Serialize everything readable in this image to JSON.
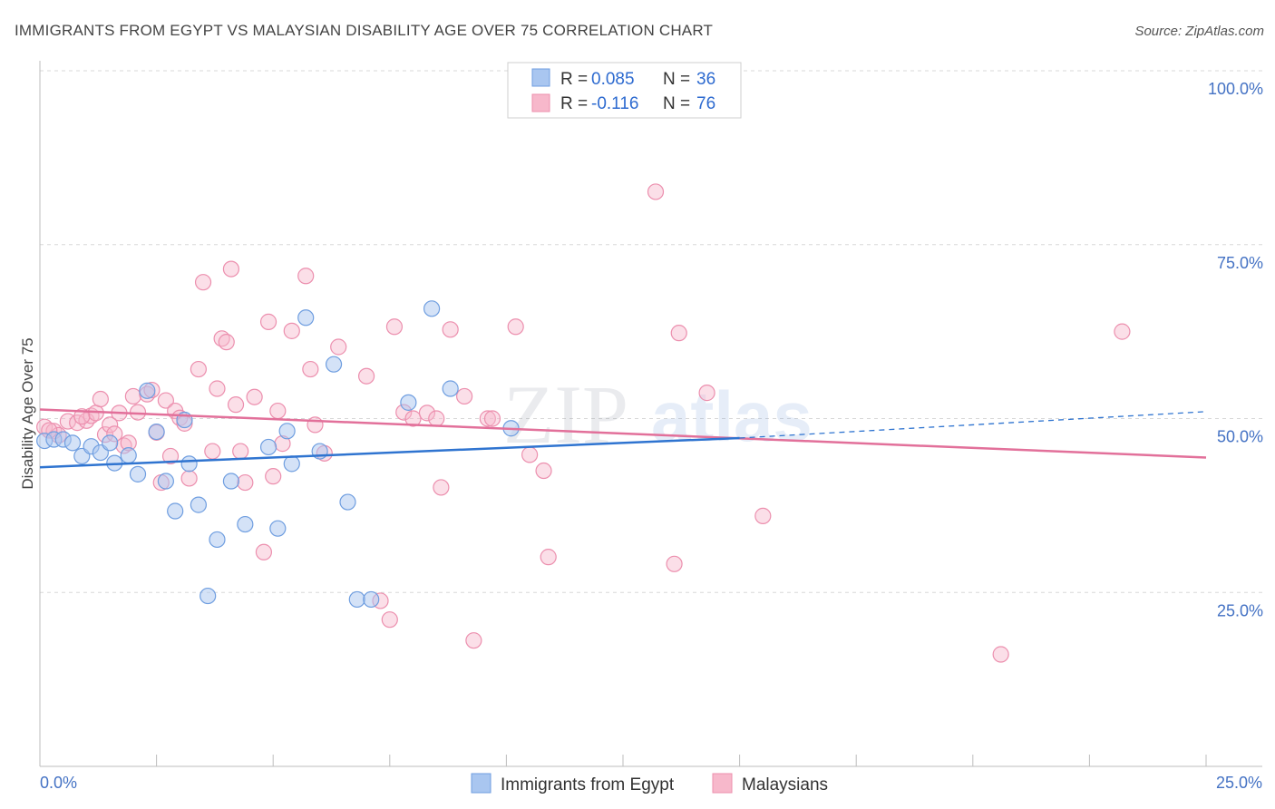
{
  "header": {
    "title": "IMMIGRANTS FROM EGYPT VS MALAYSIAN DISABILITY AGE OVER 75 CORRELATION CHART",
    "source": "Source: ZipAtlas.com"
  },
  "watermark": {
    "zip": "ZIP",
    "atlas": "atlas"
  },
  "legend": {
    "rows": [
      {
        "r_label": "R = ",
        "r_value": "0.085",
        "n_label": "N = ",
        "n_value": "36"
      },
      {
        "r_label": "R = ",
        "r_value": "-0.116",
        "n_label": "N = ",
        "n_value": "76"
      }
    ]
  },
  "colors": {
    "blue_fill": "#a9c6f0",
    "blue_stroke": "#6f9ee0",
    "blue_line": "#2f74d0",
    "pink_fill": "#f7b8cb",
    "pink_stroke": "#ec8fae",
    "pink_line": "#e2709a",
    "grid": "#d8d8d8",
    "tick_text": "#4472c4"
  },
  "chart_data": {
    "type": "scatter",
    "title": "IMMIGRANTS FROM EGYPT VS MALAYSIAN DISABILITY AGE OVER 75 CORRELATION CHART",
    "xlabel": "",
    "ylabel": "Disability Age Over 75",
    "xlim": [
      0,
      25
    ],
    "ylim": [
      0,
      100
    ],
    "x_tick_labels": [
      "0.0%",
      "25.0%"
    ],
    "y_ticks": [
      25,
      50,
      75,
      100
    ],
    "y_tick_labels": [
      "25.0%",
      "50.0%",
      "75.0%",
      "100.0%"
    ],
    "grid": true,
    "series": [
      {
        "name": "Immigrants from Egypt",
        "color": "blue",
        "trend": {
          "x": [
            0,
            15
          ],
          "y": [
            43.0,
            47.2
          ],
          "dashed_extension_to": [
            25,
            51.0
          ]
        },
        "points": [
          [
            0.1,
            46.8
          ],
          [
            0.3,
            47.0
          ],
          [
            0.5,
            47.0
          ],
          [
            0.7,
            46.5
          ],
          [
            0.9,
            44.6
          ],
          [
            1.1,
            46.0
          ],
          [
            1.3,
            45.1
          ],
          [
            1.5,
            46.5
          ],
          [
            1.6,
            43.6
          ],
          [
            1.9,
            44.7
          ],
          [
            2.1,
            42.0
          ],
          [
            2.3,
            54.0
          ],
          [
            2.5,
            48.1
          ],
          [
            2.7,
            41.0
          ],
          [
            2.9,
            36.7
          ],
          [
            3.1,
            49.8
          ],
          [
            3.2,
            43.5
          ],
          [
            3.4,
            37.6
          ],
          [
            3.6,
            24.5
          ],
          [
            3.8,
            32.6
          ],
          [
            4.1,
            41.0
          ],
          [
            4.4,
            34.8
          ],
          [
            4.9,
            45.9
          ],
          [
            5.1,
            34.2
          ],
          [
            5.3,
            48.2
          ],
          [
            5.4,
            43.5
          ],
          [
            5.7,
            64.5
          ],
          [
            6.0,
            45.3
          ],
          [
            6.3,
            57.8
          ],
          [
            6.6,
            38.0
          ],
          [
            6.8,
            24.0
          ],
          [
            7.1,
            24.0
          ],
          [
            7.9,
            52.3
          ],
          [
            8.4,
            65.8
          ],
          [
            8.8,
            54.3
          ],
          [
            10.1,
            48.6
          ]
        ]
      },
      {
        "name": "Malaysians",
        "color": "pink",
        "trend": {
          "x": [
            0,
            25
          ],
          "y": [
            51.3,
            44.4
          ]
        },
        "points": [
          [
            0.1,
            48.8
          ],
          [
            0.3,
            48.2
          ],
          [
            0.4,
            47.6
          ],
          [
            0.6,
            49.6
          ],
          [
            0.8,
            49.4
          ],
          [
            1.0,
            49.7
          ],
          [
            1.1,
            50.4
          ],
          [
            1.2,
            50.8
          ],
          [
            1.3,
            52.8
          ],
          [
            1.4,
            47.7
          ],
          [
            1.5,
            49.1
          ],
          [
            1.6,
            47.8
          ],
          [
            1.7,
            50.8
          ],
          [
            1.8,
            46.1
          ],
          [
            1.9,
            46.5
          ],
          [
            2.0,
            53.2
          ],
          [
            2.1,
            50.9
          ],
          [
            2.3,
            53.5
          ],
          [
            2.4,
            54.1
          ],
          [
            2.5,
            48.0
          ],
          [
            2.6,
            40.8
          ],
          [
            2.7,
            52.6
          ],
          [
            2.8,
            44.6
          ],
          [
            2.9,
            51.1
          ],
          [
            3.0,
            50.1
          ],
          [
            3.1,
            49.3
          ],
          [
            3.2,
            41.4
          ],
          [
            3.4,
            57.1
          ],
          [
            3.5,
            69.6
          ],
          [
            3.7,
            45.3
          ],
          [
            3.8,
            54.3
          ],
          [
            3.9,
            61.5
          ],
          [
            4.0,
            61.0
          ],
          [
            4.1,
            71.5
          ],
          [
            4.2,
            52.0
          ],
          [
            4.3,
            45.3
          ],
          [
            4.4,
            40.8
          ],
          [
            4.6,
            53.1
          ],
          [
            4.8,
            30.8
          ],
          [
            4.9,
            63.9
          ],
          [
            5.0,
            41.7
          ],
          [
            5.1,
            51.1
          ],
          [
            5.2,
            46.4
          ],
          [
            5.4,
            62.6
          ],
          [
            5.7,
            70.5
          ],
          [
            5.8,
            57.1
          ],
          [
            5.9,
            49.1
          ],
          [
            6.1,
            45.0
          ],
          [
            6.4,
            60.3
          ],
          [
            7.0,
            56.1
          ],
          [
            7.3,
            23.8
          ],
          [
            7.5,
            21.1
          ],
          [
            7.6,
            63.2
          ],
          [
            7.8,
            50.9
          ],
          [
            8.0,
            50.0
          ],
          [
            8.3,
            50.8
          ],
          [
            8.5,
            50.0
          ],
          [
            8.6,
            40.1
          ],
          [
            8.8,
            62.8
          ],
          [
            9.1,
            53.2
          ],
          [
            9.3,
            18.1
          ],
          [
            9.6,
            50.0
          ],
          [
            9.7,
            50.0
          ],
          [
            10.2,
            63.2
          ],
          [
            10.5,
            44.8
          ],
          [
            10.8,
            42.5
          ],
          [
            10.9,
            30.1
          ],
          [
            13.2,
            82.6
          ],
          [
            13.6,
            29.1
          ],
          [
            13.7,
            62.3
          ],
          [
            14.3,
            53.7
          ],
          [
            15.5,
            36.0
          ],
          [
            20.6,
            16.1
          ],
          [
            23.2,
            62.5
          ],
          [
            0.2,
            48.3
          ],
          [
            0.9,
            50.3
          ]
        ]
      }
    ]
  },
  "bottom_legend": {
    "items": [
      {
        "label": "Immigrants from Egypt"
      },
      {
        "label": "Malaysians"
      }
    ]
  }
}
